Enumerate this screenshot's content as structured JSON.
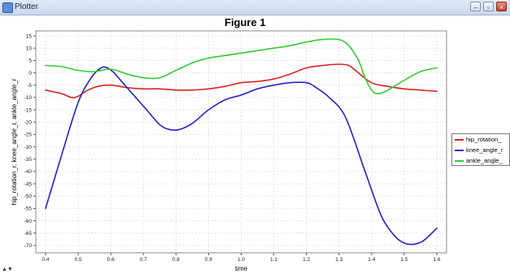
{
  "window": {
    "title": "Plotter",
    "btn_minimize": "–",
    "btn_maximize": "▫",
    "btn_close": "×"
  },
  "resize_handle": "▲▼",
  "chart_data": {
    "type": "line",
    "title": "Figure 1",
    "xlabel": "time",
    "ylabel": "hip_rotation_r, knee_angle_r, ankle_angle_r",
    "xlim": [
      0.37,
      1.63
    ],
    "ylim": [
      -73,
      17
    ],
    "xticks": [
      "0.4",
      "0.5",
      "0.6",
      "0.7",
      "0.8",
      "0.9",
      "1.0",
      "1.1",
      "1.2",
      "1.3",
      "1.4",
      "1.5",
      "1.6"
    ],
    "yticks": [
      "15",
      "10",
      "5",
      "0",
      "-5",
      "-10",
      "-15",
      "-20",
      "-25",
      "-30",
      "-35",
      "-40",
      "-45",
      "-50",
      "-55",
      "-60",
      "-65",
      "-70"
    ],
    "grid": true,
    "legend_position": "right",
    "series": [
      {
        "name": "hip_rotation_",
        "color": "#dd2222",
        "x": [
          0.4,
          0.45,
          0.48,
          0.5,
          0.53,
          0.56,
          0.6,
          0.65,
          0.7,
          0.75,
          0.8,
          0.85,
          0.9,
          0.95,
          1.0,
          1.05,
          1.1,
          1.15,
          1.2,
          1.25,
          1.3,
          1.33,
          1.35,
          1.4,
          1.45,
          1.5,
          1.55,
          1.6
        ],
        "values": [
          -7,
          -8.5,
          -10,
          -9.5,
          -7,
          -5.5,
          -5,
          -6,
          -6.5,
          -6.5,
          -7,
          -7,
          -6.5,
          -5.5,
          -4,
          -3.5,
          -2.5,
          -0.5,
          2,
          3,
          3.5,
          3,
          1,
          -4,
          -5.5,
          -6.5,
          -7,
          -7.5
        ]
      },
      {
        "name": "knee_angle_r",
        "color": "#2222cc",
        "x": [
          0.4,
          0.45,
          0.5,
          0.54,
          0.57,
          0.59,
          0.61,
          0.63,
          0.67,
          0.71,
          0.75,
          0.78,
          0.81,
          0.85,
          0.9,
          0.95,
          1.0,
          1.05,
          1.1,
          1.15,
          1.2,
          1.23,
          1.27,
          1.32,
          1.38,
          1.43,
          1.47,
          1.5,
          1.53,
          1.56,
          1.6
        ],
        "values": [
          -55,
          -33,
          -12,
          -2,
          2,
          2,
          0,
          -3,
          -9,
          -15,
          -21,
          -23,
          -23,
          -20.5,
          -15,
          -11,
          -9,
          -6.5,
          -5,
          -4,
          -4,
          -6,
          -10,
          -18,
          -40,
          -58,
          -66,
          -69,
          -69.5,
          -68,
          -63
        ]
      },
      {
        "name": "ankle_angle_",
        "color": "#33cc33",
        "x": [
          0.4,
          0.45,
          0.5,
          0.55,
          0.6,
          0.65,
          0.7,
          0.75,
          0.8,
          0.85,
          0.9,
          0.95,
          1.0,
          1.05,
          1.1,
          1.15,
          1.2,
          1.25,
          1.3,
          1.33,
          1.36,
          1.38,
          1.4,
          1.42,
          1.45,
          1.5,
          1.55,
          1.6
        ],
        "values": [
          3,
          2.5,
          1,
          0.5,
          1.5,
          -0.5,
          -2,
          -2,
          1,
          4,
          6,
          7,
          8,
          9,
          10,
          11,
          12.5,
          13.5,
          13.5,
          11,
          5,
          -2,
          -7,
          -8.5,
          -7,
          -3,
          0.5,
          2
        ]
      }
    ]
  }
}
